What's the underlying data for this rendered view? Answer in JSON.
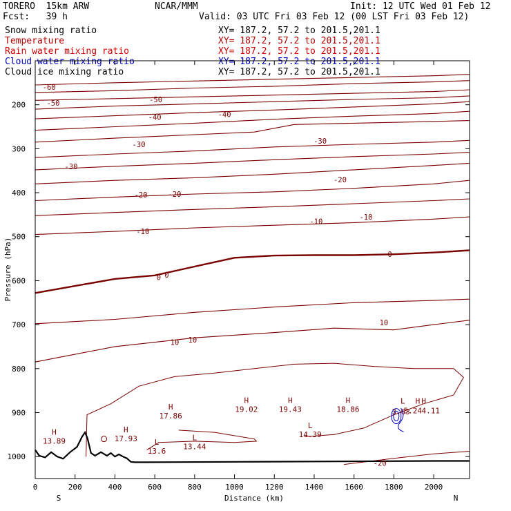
{
  "header": {
    "model": "TORERO  15km ARW",
    "org": "NCAR/MMM",
    "init": "Init: 12 UTC Wed 01 Feb 12",
    "fcst": "Fcst:   39 h",
    "valid": "Valid: 03 UTC Fri 03 Feb 12 (00 LST Fri 03 Feb 12)"
  },
  "fields": [
    {
      "name": "Snow mixing ratio",
      "xy": "XY= 187.2, 57.2 to 201.5,201.1",
      "color": "#000000"
    },
    {
      "name": "Temperature",
      "xy": "XY= 187.2, 57.2 to 201.5,201.1",
      "color": "#b00000"
    },
    {
      "name": "Rain water mixing ratio",
      "xy": "XY= 187.2, 57.2 to 201.5,201.1",
      "color": "#d00000"
    },
    {
      "name": "Cloud water mixing ratio",
      "xy": "XY= 187.2, 57.2 to 201.5,201.1",
      "color": "#0000c0"
    },
    {
      "name": "Cloud ice mixing ratio",
      "xy": "XY= 187.2, 57.2 to 201.5,201.1",
      "color": "#000000"
    }
  ],
  "chart_data": {
    "type": "line",
    "subtype": "vertical cross-section contour",
    "xlabel": "Distance (km)",
    "ylabel": "Pressure (hPa)",
    "xlim": [
      0,
      2180
    ],
    "ylim": [
      1050,
      100
    ],
    "x_ticks": [
      0,
      200,
      400,
      600,
      800,
      1000,
      1200,
      1400,
      1600,
      1800,
      2000
    ],
    "x_tick_labels": [
      "0",
      "200",
      "400",
      "600",
      "800",
      "1000",
      "1200",
      "1400",
      "1600",
      "1800",
      "2000"
    ],
    "y_ticks": [
      200,
      300,
      400,
      500,
      600,
      700,
      800,
      900,
      1000
    ],
    "y_tick_labels": [
      "200",
      "300",
      "400",
      "500",
      "600",
      "700",
      "800",
      "900",
      "1000"
    ],
    "left_end_label": "S",
    "right_end_label": "N",
    "contour_color": "#7a0000",
    "terrain_color": "#000000",
    "temperature_contours": [
      {
        "value": -60,
        "x": [
          0,
          400,
          800,
          1200,
          1600,
          2000,
          2180
        ],
        "y": [
          172,
          168,
          162,
          158,
          152,
          148,
          145
        ]
      },
      {
        "value": -60,
        "x": [
          0,
          400,
          800,
          1200,
          1600,
          2000,
          2180
        ],
        "y": [
          155,
          150,
          146,
          142,
          138,
          134,
          131
        ]
      },
      {
        "value": -50,
        "x": [
          0,
          400,
          800,
          1200,
          1600,
          2000,
          2180
        ],
        "y": [
          190,
          186,
          182,
          178,
          174,
          170,
          166
        ]
      },
      {
        "value": -50,
        "x": [
          0,
          400,
          800,
          1200,
          1600,
          2000,
          2180
        ],
        "y": [
          210,
          203,
          198,
          193,
          188,
          184,
          180
        ]
      },
      {
        "value": -50,
        "x": [
          0,
          400,
          800,
          1200,
          1600,
          2000,
          2180
        ],
        "y": [
          232,
          225,
          218,
          212,
          205,
          198,
          193
        ]
      },
      {
        "value": -40,
        "x": [
          0,
          400,
          800,
          1200,
          1600,
          2000,
          2180
        ],
        "y": [
          258,
          250,
          242,
          233,
          226,
          220,
          215
        ]
      },
      {
        "value": -40,
        "x": [
          0,
          400,
          800,
          1100,
          1300,
          1600,
          2000,
          2180
        ],
        "y": [
          285,
          276,
          268,
          262,
          245,
          242,
          238,
          236
        ]
      },
      {
        "value": -30,
        "x": [
          0,
          400,
          800,
          1200,
          1600,
          2000,
          2180
        ],
        "y": [
          320,
          312,
          305,
          296,
          290,
          285,
          281
        ]
      },
      {
        "value": -30,
        "x": [
          0,
          400,
          800,
          1200,
          1600,
          2000,
          2180
        ],
        "y": [
          348,
          340,
          333,
          325,
          318,
          312,
          308
        ]
      },
      {
        "value": -20,
        "x": [
          0,
          400,
          800,
          1200,
          1600,
          2000,
          2180
        ],
        "y": [
          380,
          372,
          366,
          358,
          348,
          338,
          333
        ]
      },
      {
        "value": -20,
        "x": [
          0,
          400,
          800,
          1200,
          1600,
          2000,
          2180
        ],
        "y": [
          418,
          410,
          403,
          398,
          390,
          380,
          372
        ]
      },
      {
        "value": -10,
        "x": [
          0,
          400,
          800,
          1200,
          1600,
          2000,
          2180
        ],
        "y": [
          452,
          445,
          438,
          432,
          425,
          418,
          414
        ]
      },
      {
        "value": -10,
        "x": [
          0,
          400,
          800,
          1200,
          1600,
          2000,
          2180
        ],
        "y": [
          495,
          488,
          480,
          474,
          468,
          460,
          455
        ]
      },
      {
        "value": 0,
        "x": [
          0,
          200,
          400,
          600,
          800,
          1000,
          1200,
          1400,
          1600,
          1800,
          2000,
          2180
        ],
        "y": [
          628,
          612,
          596,
          588,
          568,
          548,
          543,
          542,
          542,
          540,
          536,
          531
        ]
      },
      {
        "value": 10,
        "x": [
          0,
          400,
          800,
          1200,
          1600,
          2000,
          2180
        ],
        "y": [
          698,
          688,
          672,
          660,
          650,
          645,
          642
        ]
      },
      {
        "value": 10,
        "x": [
          0,
          400,
          800,
          1200,
          1500,
          1800,
          2000,
          2180
        ],
        "y": [
          785,
          750,
          730,
          718,
          708,
          712,
          700,
          690
        ]
      }
    ],
    "temperature_labels": [
      {
        "text": "-60",
        "x": 70,
        "y": 160
      },
      {
        "text": "-50",
        "x": 90,
        "y": 196
      },
      {
        "text": "-50",
        "x": 605,
        "y": 188
      },
      {
        "text": "-40",
        "x": 600,
        "y": 228
      },
      {
        "text": "-40",
        "x": 950,
        "y": 222
      },
      {
        "text": "-30",
        "x": 520,
        "y": 290
      },
      {
        "text": "-30",
        "x": 1430,
        "y": 282
      },
      {
        "text": "-30",
        "x": 180,
        "y": 340
      },
      {
        "text": "-20",
        "x": 1530,
        "y": 370
      },
      {
        "text": "-20",
        "x": 530,
        "y": 405
      },
      {
        "text": "-20",
        "x": 700,
        "y": 403
      },
      {
        "text": "-10",
        "x": 1410,
        "y": 465
      },
      {
        "text": "-10",
        "x": 1660,
        "y": 455
      },
      {
        "text": "-10",
        "x": 540,
        "y": 488
      },
      {
        "text": "0",
        "x": 620,
        "y": 592
      },
      {
        "text": "0",
        "x": 660,
        "y": 587
      },
      {
        "text": "0",
        "x": 1780,
        "y": 540
      },
      {
        "text": "10",
        "x": 1750,
        "y": 695
      },
      {
        "text": "10",
        "x": 700,
        "y": 740
      },
      {
        "text": "10",
        "x": 790,
        "y": 734
      },
      {
        "text": "-20",
        "x": 1730,
        "y": 1015
      }
    ],
    "highs_lows": [
      {
        "type": "H",
        "value": "13.89",
        "x": 95,
        "y": 950
      },
      {
        "type": "H",
        "value": "17.93",
        "x": 455,
        "y": 945
      },
      {
        "type": "H",
        "value": "17.86",
        "x": 680,
        "y": 893
      },
      {
        "type": "H",
        "value": "19.02",
        "x": 1060,
        "y": 878
      },
      {
        "type": "H",
        "value": "19.43",
        "x": 1280,
        "y": 878
      },
      {
        "type": "H",
        "value": "18.86",
        "x": 1570,
        "y": 878
      },
      {
        "type": "L",
        "value": "13.6",
        "x": 610,
        "y": 973
      },
      {
        "type": "L",
        "value": "13.44",
        "x": 800,
        "y": 963
      },
      {
        "type": "L",
        "value": "14.39",
        "x": 1380,
        "y": 935
      },
      {
        "type": "L",
        "value": "",
        "x": 1845,
        "y": 880
      },
      {
        "type": "H",
        "value": "",
        "x": 1920,
        "y": 880
      },
      {
        "type": "H",
        "value": "",
        "x": 1950,
        "y": 880
      },
      {
        "type": "",
        "value": "3.63",
        "x": 1835,
        "y": 904
      },
      {
        "type": "",
        "value": "5.24",
        "x": 1895,
        "y": 902
      },
      {
        "type": "",
        "value": "4.11",
        "x": 1985,
        "y": 902
      }
    ],
    "terrain": {
      "x": [
        0,
        20,
        50,
        80,
        110,
        140,
        175,
        210,
        235,
        250,
        262,
        280,
        300,
        330,
        360,
        380,
        400,
        420,
        440,
        460,
        480,
        500,
        550,
        1000,
        1500,
        2000,
        2180
      ],
      "y": [
        985,
        998,
        1002,
        990,
        1000,
        1005,
        990,
        978,
        955,
        945,
        958,
        992,
        998,
        990,
        998,
        992,
        1000,
        995,
        1000,
        1004,
        1012,
        1013,
        1013,
        1012,
        1011,
        1010,
        1010
      ]
    }
  }
}
